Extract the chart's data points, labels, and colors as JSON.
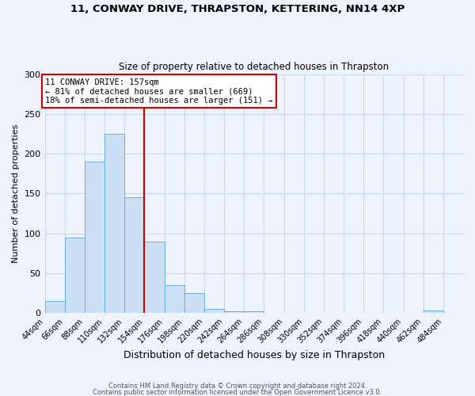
{
  "title1": "11, CONWAY DRIVE, THRAPSTON, KETTERING, NN14 4XP",
  "title2": "Size of property relative to detached houses in Thrapston",
  "xlabel": "Distribution of detached houses by size in Thrapston",
  "ylabel": "Number of detached properties",
  "footer1": "Contains HM Land Registry data © Crown copyright and database right 2024.",
  "footer2": "Contains public sector information licensed under the Open Government Licence v3.0.",
  "bin_edges": [
    44,
    66,
    88,
    110,
    132,
    154,
    176,
    198,
    220,
    242,
    264,
    286,
    308,
    330,
    352,
    374,
    396,
    418,
    440,
    462,
    484,
    506
  ],
  "bar_heights": [
    15,
    95,
    190,
    225,
    145,
    90,
    35,
    25,
    5,
    2,
    2,
    0,
    0,
    0,
    0,
    0,
    0,
    0,
    0,
    3,
    0
  ],
  "bar_color": "#cce0f5",
  "bar_edge_color": "#6aaed6",
  "vline_x": 154,
  "vline_color": "#cc0000",
  "annotation_line1": "11 CONWAY DRIVE: 157sqm",
  "annotation_line2": "← 81% of detached houses are smaller (669)",
  "annotation_line3": "18% of semi-detached houses are larger (151) →",
  "annotation_box_color": "#ffffff",
  "annotation_box_edge": "#cc0000",
  "ylim": [
    0,
    300
  ],
  "yticks": [
    0,
    50,
    100,
    150,
    200,
    250,
    300
  ],
  "xtick_labels": [
    "44sqm",
    "66sqm",
    "88sqm",
    "110sqm",
    "132sqm",
    "154sqm",
    "176sqm",
    "198sqm",
    "220sqm",
    "242sqm",
    "264sqm",
    "286sqm",
    "308sqm",
    "330sqm",
    "352sqm",
    "374sqm",
    "396sqm",
    "418sqm",
    "440sqm",
    "462sqm",
    "484sqm"
  ],
  "grid_color": "#c8d8e8",
  "background_color": "#eef2fa"
}
